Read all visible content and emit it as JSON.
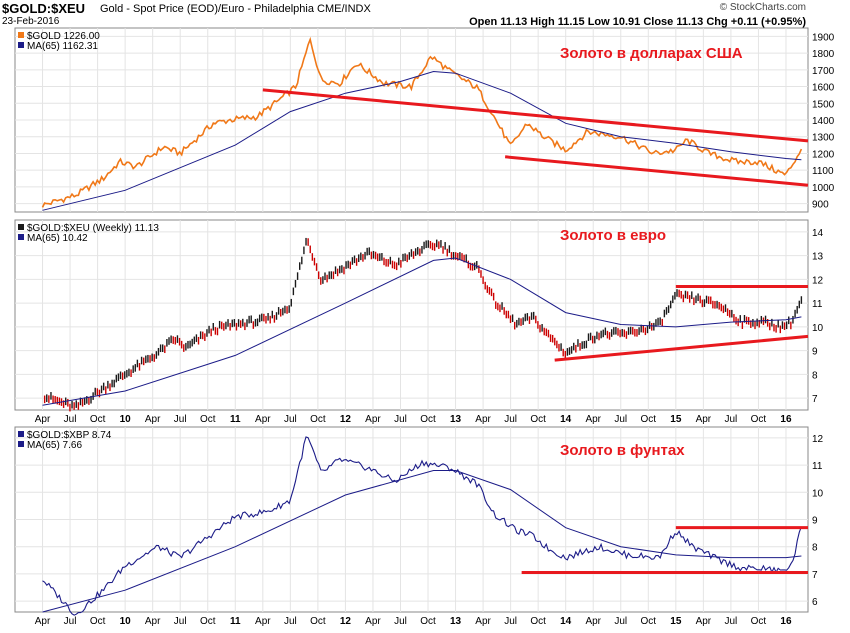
{
  "header": {
    "symbol": "$GOLD:$XEU",
    "description": "Gold - Spot Price (EOD)/Euro - Philadelphia CME/INDX",
    "date": "23-Feb-2016",
    "ohlc": "Open 11.13  High 11.15  Low 10.91  Close 11.13  Chg +0.11 (+0.95%)",
    "watermark": "© StockCharts.com"
  },
  "colors": {
    "usd": "#f07818",
    "eur": "#1a1a1a",
    "eur_down": "#cc0000",
    "gbp": "#1c1c88",
    "ma": "#1c1c88",
    "trend": "#e8191e",
    "annot": "#e8191e"
  },
  "chart_data": [
    {
      "type": "line",
      "legend": [
        "$GOLD 1226.00",
        "MA(65) 1162.31"
      ],
      "annotation": "Золото в долларах США",
      "ytick_labels": [
        "900",
        "1000",
        "1100",
        "1200",
        "1300",
        "1400",
        "1500",
        "1600",
        "1700",
        "1800",
        "1900"
      ],
      "ylim": [
        850,
        1950
      ],
      "series": [
        {
          "name": "$GOLD",
          "x": [
            2009.25,
            2009.55,
            2009.8,
            2009.95,
            2010.1,
            2010.35,
            2010.5,
            2010.8,
            2010.95,
            2011.2,
            2011.4,
            2011.55,
            2011.68,
            2011.78,
            2011.95,
            2012.1,
            2012.35,
            2012.6,
            2012.78,
            2012.95,
            2013.2,
            2013.35,
            2013.5,
            2013.65,
            2013.8,
            2014.0,
            2014.2,
            2014.5,
            2014.8,
            2015.0,
            2015.1,
            2015.3,
            2015.55,
            2015.75,
            2015.9,
            2016.0,
            2016.14
          ],
          "y": [
            890,
            950,
            1050,
            1150,
            1120,
            1240,
            1200,
            1380,
            1400,
            1420,
            1520,
            1600,
            1880,
            1640,
            1620,
            1740,
            1620,
            1600,
            1780,
            1690,
            1590,
            1420,
            1240,
            1380,
            1300,
            1220,
            1330,
            1300,
            1200,
            1220,
            1280,
            1200,
            1150,
            1150,
            1100,
            1070,
            1226
          ]
        },
        {
          "name": "MA(65)",
          "x": [
            2009.25,
            2010.0,
            2011.0,
            2011.5,
            2012.0,
            2012.5,
            2012.8,
            2013.0,
            2013.5,
            2014.0,
            2014.5,
            2015.0,
            2015.5,
            2016.0,
            2016.14
          ],
          "y": [
            860,
            980,
            1250,
            1450,
            1560,
            1630,
            1690,
            1680,
            1560,
            1380,
            1300,
            1260,
            1210,
            1170,
            1162
          ]
        }
      ]
    },
    {
      "type": "bar",
      "legend": [
        "$GOLD:$XEU (Weekly) 11.13",
        "MA(65) 10.42"
      ],
      "annotation": "Золото в евро",
      "ytick_labels": [
        "7",
        "8",
        "9",
        "10",
        "11",
        "12",
        "13",
        "14"
      ],
      "ylim": [
        6.5,
        14.5
      ],
      "series": [
        {
          "name": "$GOLD:$XEU (Weekly)",
          "x": [
            2009.25,
            2009.55,
            2009.8,
            2010.0,
            2010.3,
            2010.45,
            2010.55,
            2010.8,
            2011.0,
            2011.3,
            2011.5,
            2011.65,
            2011.78,
            2011.95,
            2012.2,
            2012.45,
            2012.7,
            2012.85,
            2013.0,
            2013.2,
            2013.35,
            2013.55,
            2013.7,
            2013.85,
            2014.0,
            2014.3,
            2014.55,
            2014.85,
            2015.0,
            2015.15,
            2015.4,
            2015.6,
            2015.8,
            2015.95,
            2016.05,
            2016.14
          ],
          "y": [
            7.1,
            6.6,
            7.4,
            8.0,
            8.9,
            9.5,
            9.1,
            9.9,
            10.1,
            10.3,
            10.9,
            13.7,
            12.0,
            12.4,
            13.1,
            12.6,
            13.3,
            13.5,
            13.0,
            12.5,
            11.1,
            10.1,
            10.4,
            9.6,
            8.9,
            9.7,
            9.7,
            10.1,
            11.3,
            11.2,
            10.9,
            10.2,
            10.2,
            10.0,
            10.2,
            11.13
          ]
        },
        {
          "name": "MA(65)",
          "x": [
            2009.25,
            2010.0,
            2011.0,
            2012.0,
            2012.8,
            2013.0,
            2013.5,
            2014.0,
            2014.5,
            2015.0,
            2015.5,
            2016.0,
            2016.14
          ],
          "y": [
            6.7,
            7.3,
            8.8,
            11.0,
            12.8,
            12.9,
            12.0,
            10.6,
            10.1,
            10.0,
            10.2,
            10.3,
            10.42
          ]
        }
      ]
    },
    {
      "type": "line",
      "legend": [
        "$GOLD:$XBP 8.74",
        "MA(65) 7.66"
      ],
      "annotation": "Золото в фунтах",
      "ytick_labels": [
        "6",
        "7",
        "8",
        "9",
        "10",
        "11",
        "12"
      ],
      "ylim": [
        5.6,
        12.4
      ],
      "series": [
        {
          "name": "$GOLD:$XBP",
          "x": [
            2009.25,
            2009.55,
            2009.8,
            2010.0,
            2010.3,
            2010.5,
            2010.8,
            2011.0,
            2011.3,
            2011.5,
            2011.65,
            2011.78,
            2011.95,
            2012.2,
            2012.45,
            2012.7,
            2012.95,
            2013.2,
            2013.35,
            2013.55,
            2013.7,
            2013.85,
            2014.0,
            2014.3,
            2014.55,
            2014.85,
            2015.0,
            2015.15,
            2015.4,
            2015.6,
            2015.8,
            2015.95,
            2016.05,
            2016.14
          ],
          "y": [
            6.8,
            5.5,
            6.4,
            7.3,
            8.0,
            7.6,
            8.5,
            9.1,
            9.3,
            9.7,
            12.1,
            10.7,
            11.2,
            10.9,
            10.4,
            11.1,
            10.9,
            10.3,
            9.2,
            8.6,
            8.4,
            7.9,
            7.6,
            8.0,
            7.7,
            7.6,
            8.6,
            8.0,
            7.5,
            7.2,
            7.2,
            7.1,
            7.3,
            8.74
          ]
        },
        {
          "name": "MA(65)",
          "x": [
            2009.25,
            2010.0,
            2011.0,
            2012.0,
            2012.8,
            2013.0,
            2013.5,
            2014.0,
            2014.5,
            2015.0,
            2015.5,
            2016.0,
            2016.14
          ],
          "y": [
            5.6,
            6.4,
            8.0,
            9.9,
            10.8,
            10.8,
            10.1,
            8.7,
            8.0,
            7.7,
            7.6,
            7.6,
            7.66
          ]
        }
      ]
    }
  ],
  "x_axis": {
    "labels": [
      "Apr",
      "Jul",
      "Oct",
      "10",
      "Apr",
      "Jul",
      "Oct",
      "11",
      "Apr",
      "Jul",
      "Oct",
      "12",
      "Apr",
      "Jul",
      "Oct",
      "13",
      "Apr",
      "Jul",
      "Oct",
      "14",
      "Apr",
      "Jul",
      "Oct",
      "15",
      "Apr",
      "Jul",
      "Oct",
      "16"
    ],
    "positions": [
      2009.25,
      2009.5,
      2009.75,
      2010.0,
      2010.25,
      2010.5,
      2010.75,
      2011.0,
      2011.25,
      2011.5,
      2011.75,
      2012.0,
      2012.25,
      2012.5,
      2012.75,
      2013.0,
      2013.25,
      2013.5,
      2013.75,
      2014.0,
      2014.25,
      2014.5,
      2014.75,
      2015.0,
      2015.25,
      2015.5,
      2015.75,
      2016.0
    ],
    "xlim": [
      2009.0,
      2016.2
    ]
  },
  "trendlines": [
    {
      "panel": 0,
      "points": [
        [
          2011.25,
          1580
        ],
        [
          2016.2,
          1275
        ]
      ]
    },
    {
      "panel": 0,
      "points": [
        [
          2013.45,
          1180
        ],
        [
          2016.2,
          1010
        ]
      ]
    },
    {
      "panel": 1,
      "points": [
        [
          2015.0,
          11.7
        ],
        [
          2016.2,
          11.7
        ]
      ]
    },
    {
      "panel": 1,
      "points": [
        [
          2013.9,
          8.6
        ],
        [
          2016.2,
          9.6
        ]
      ]
    },
    {
      "panel": 2,
      "points": [
        [
          2015.0,
          8.7
        ],
        [
          2016.2,
          8.7
        ]
      ]
    },
    {
      "panel": 2,
      "points": [
        [
          2013.6,
          7.05
        ],
        [
          2016.2,
          7.05
        ]
      ]
    }
  ]
}
